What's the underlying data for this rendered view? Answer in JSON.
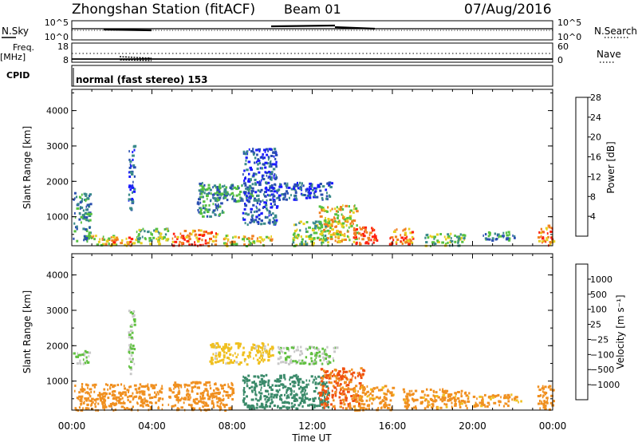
{
  "header": {
    "station": "Zhongshan Station (fitACF)",
    "beam": "Beam 01",
    "date": "07/Aug/2016"
  },
  "top_panels": {
    "nsky": {
      "label": "N.Sky",
      "right_label": "N.Search",
      "left_ticks": [
        "10^5",
        "10^0"
      ],
      "right_ticks": [
        "10^5",
        "10^0"
      ]
    },
    "freq": {
      "label_line1": "Freq.",
      "label_line2": "[MHz]",
      "right_label": "Nave",
      "left_ticks": [
        "18",
        "8"
      ],
      "right_ticks": [
        "60",
        "0"
      ]
    },
    "cpid": {
      "label": "CPID",
      "mode": "normal (fast stereo) 153"
    }
  },
  "chart_data": [
    {
      "type": "heatmap",
      "panel": "power",
      "ylabel": "Slant Range [km]",
      "yticks": [
        1000,
        2000,
        3000,
        4000
      ],
      "ylim": [
        180,
        4600
      ],
      "xlim": [
        0,
        24
      ],
      "colorbar": {
        "label": "Power [dB]",
        "ticks": [
          "4",
          "8",
          "12",
          "16",
          "20",
          "24",
          "28"
        ],
        "colors": [
          "#1a1aff",
          "#2a4fb0",
          "#3a8a8a",
          "#55c040",
          "#e8d020",
          "#f08020",
          "#ff2010"
        ]
      },
      "patches": [
        {
          "t": [
            0.05,
            0.9
          ],
          "r": [
            300,
            1700
          ],
          "level": 2
        },
        {
          "t": [
            0.9,
            2.2
          ],
          "r": [
            200,
            500
          ],
          "level": 4
        },
        {
          "t": [
            2.0,
            3.2
          ],
          "r": [
            200,
            450
          ],
          "level": 5
        },
        {
          "t": [
            2.8,
            3.1
          ],
          "r": [
            1200,
            3050
          ],
          "level": 1
        },
        {
          "t": [
            3.2,
            4.8
          ],
          "r": [
            250,
            700
          ],
          "level": 3
        },
        {
          "t": [
            5.0,
            7.2
          ],
          "r": [
            200,
            650
          ],
          "level": 5
        },
        {
          "t": [
            6.2,
            7.5
          ],
          "r": [
            1000,
            2000
          ],
          "level": 2
        },
        {
          "t": [
            7.0,
            9.0
          ],
          "r": [
            1450,
            1950
          ],
          "level": 2
        },
        {
          "t": [
            7.5,
            10.0
          ],
          "r": [
            200,
            500
          ],
          "level": 4
        },
        {
          "t": [
            8.5,
            10.2
          ],
          "r": [
            800,
            2950
          ],
          "level": 1
        },
        {
          "t": [
            10.0,
            13.0
          ],
          "r": [
            1500,
            2000
          ],
          "level": 1
        },
        {
          "t": [
            11.0,
            12.8
          ],
          "r": [
            200,
            900
          ],
          "level": 3
        },
        {
          "t": [
            12.3,
            14.2
          ],
          "r": [
            300,
            1350
          ],
          "level": 4
        },
        {
          "t": [
            14.0,
            15.2
          ],
          "r": [
            250,
            750
          ],
          "level": 6
        },
        {
          "t": [
            15.8,
            17.0
          ],
          "r": [
            250,
            700
          ],
          "level": 5
        },
        {
          "t": [
            17.5,
            19.6
          ],
          "r": [
            200,
            550
          ],
          "level": 3
        },
        {
          "t": [
            20.5,
            22.2
          ],
          "r": [
            350,
            600
          ],
          "level": 2
        },
        {
          "t": [
            23.2,
            24.0
          ],
          "r": [
            200,
            800
          ],
          "level": 5
        }
      ]
    },
    {
      "type": "heatmap",
      "panel": "velocity",
      "ylabel": "Slant Range [km]",
      "yticks": [
        1000,
        2000,
        3000,
        4000
      ],
      "ylim": [
        180,
        4600
      ],
      "xlim": [
        0,
        24
      ],
      "xticks": [
        "00:00",
        "04:00",
        "08:00",
        "12:00",
        "16:00",
        "20:00",
        "00:00"
      ],
      "xlabel": "Time UT",
      "colorbar": {
        "label": "Velocity [m s⁻¹]",
        "ticks": [
          "1000",
          "500",
          "100",
          "25",
          "−25",
          "−100",
          "−500",
          "−1000"
        ],
        "colors": [
          "#1a3aff",
          "#2a5fb0",
          "#3a8a6a",
          "#60c040",
          "#c8c8c8",
          "#f0c020",
          "#f09020",
          "#f05010",
          "#ff1010"
        ]
      },
      "patches": [
        {
          "t": [
            0.05,
            0.9
          ],
          "r": [
            1500,
            1900
          ],
          "value": 25
        },
        {
          "t": [
            0.1,
            4.5
          ],
          "r": [
            200,
            950
          ],
          "value": -300
        },
        {
          "t": [
            2.8,
            3.1
          ],
          "r": [
            1200,
            3050
          ],
          "value": 25
        },
        {
          "t": [
            4.8,
            8.0
          ],
          "r": [
            200,
            1000
          ],
          "value": -300
        },
        {
          "t": [
            6.8,
            10.0
          ],
          "r": [
            1500,
            2100
          ],
          "value": -50
        },
        {
          "t": [
            8.5,
            12.8
          ],
          "r": [
            250,
            1200
          ],
          "value": 300
        },
        {
          "t": [
            10.2,
            13.2
          ],
          "r": [
            1500,
            2000
          ],
          "value": 25
        },
        {
          "t": [
            12.3,
            14.5
          ],
          "r": [
            250,
            1400
          ],
          "value": -600
        },
        {
          "t": [
            14.0,
            16.0
          ],
          "r": [
            200,
            900
          ],
          "value": -200
        },
        {
          "t": [
            16.5,
            19.8
          ],
          "r": [
            250,
            800
          ],
          "value": -200
        },
        {
          "t": [
            20.0,
            22.4
          ],
          "r": [
            300,
            650
          ],
          "value": -150
        },
        {
          "t": [
            23.2,
            24.0
          ],
          "r": [
            200,
            900
          ],
          "value": -300
        }
      ]
    }
  ]
}
